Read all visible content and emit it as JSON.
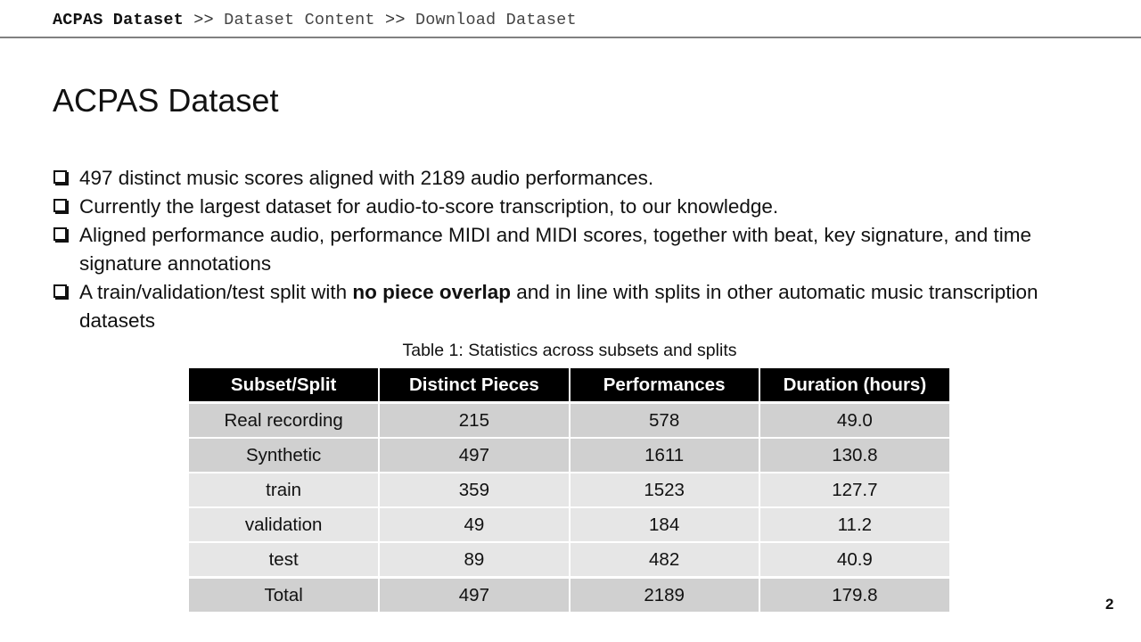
{
  "breadcrumb": {
    "items": [
      "ACPAS Dataset",
      "Dataset Content",
      "Download Dataset"
    ],
    "separator": ">>"
  },
  "slide": {
    "title": "ACPAS Dataset",
    "page_number": "2"
  },
  "bullets": [
    {
      "text": "497 distinct  music  scores  aligned  with  2189  audio  performances."
    },
    {
      "text": "Currently the largest dataset for audio-to-score transcription, to our knowledge."
    },
    {
      "text": "Aligned performance audio, performance MIDI and MIDI scores, together with beat, key signature, and time signature annotations"
    },
    {
      "pre": "A train/validation/test split with ",
      "bold": "no piece overlap",
      "post": " and in line with splits in other automatic music transcription datasets"
    }
  ],
  "table": {
    "caption": "Table 1: Statistics across subsets and splits",
    "headers": [
      "Subset/Split",
      "Distinct Pieces",
      "Performances",
      "Duration (hours)"
    ],
    "rows": [
      [
        "Real recording",
        "215",
        "578",
        "49.0"
      ],
      [
        "Synthetic",
        "497",
        "1611",
        "130.8"
      ],
      [
        "train",
        "359",
        "1523",
        "127.7"
      ],
      [
        "validation",
        "49",
        "184",
        "11.2"
      ],
      [
        "test",
        "89",
        "482",
        "40.9"
      ],
      [
        "Total",
        "497",
        "2189",
        "179.8"
      ]
    ]
  },
  "colors": {
    "header_bg": "#000000",
    "header_text": "#ffffff",
    "row_dark": "#d0d0d0",
    "row_light": "#e6e6e6",
    "rule": "#808080"
  }
}
